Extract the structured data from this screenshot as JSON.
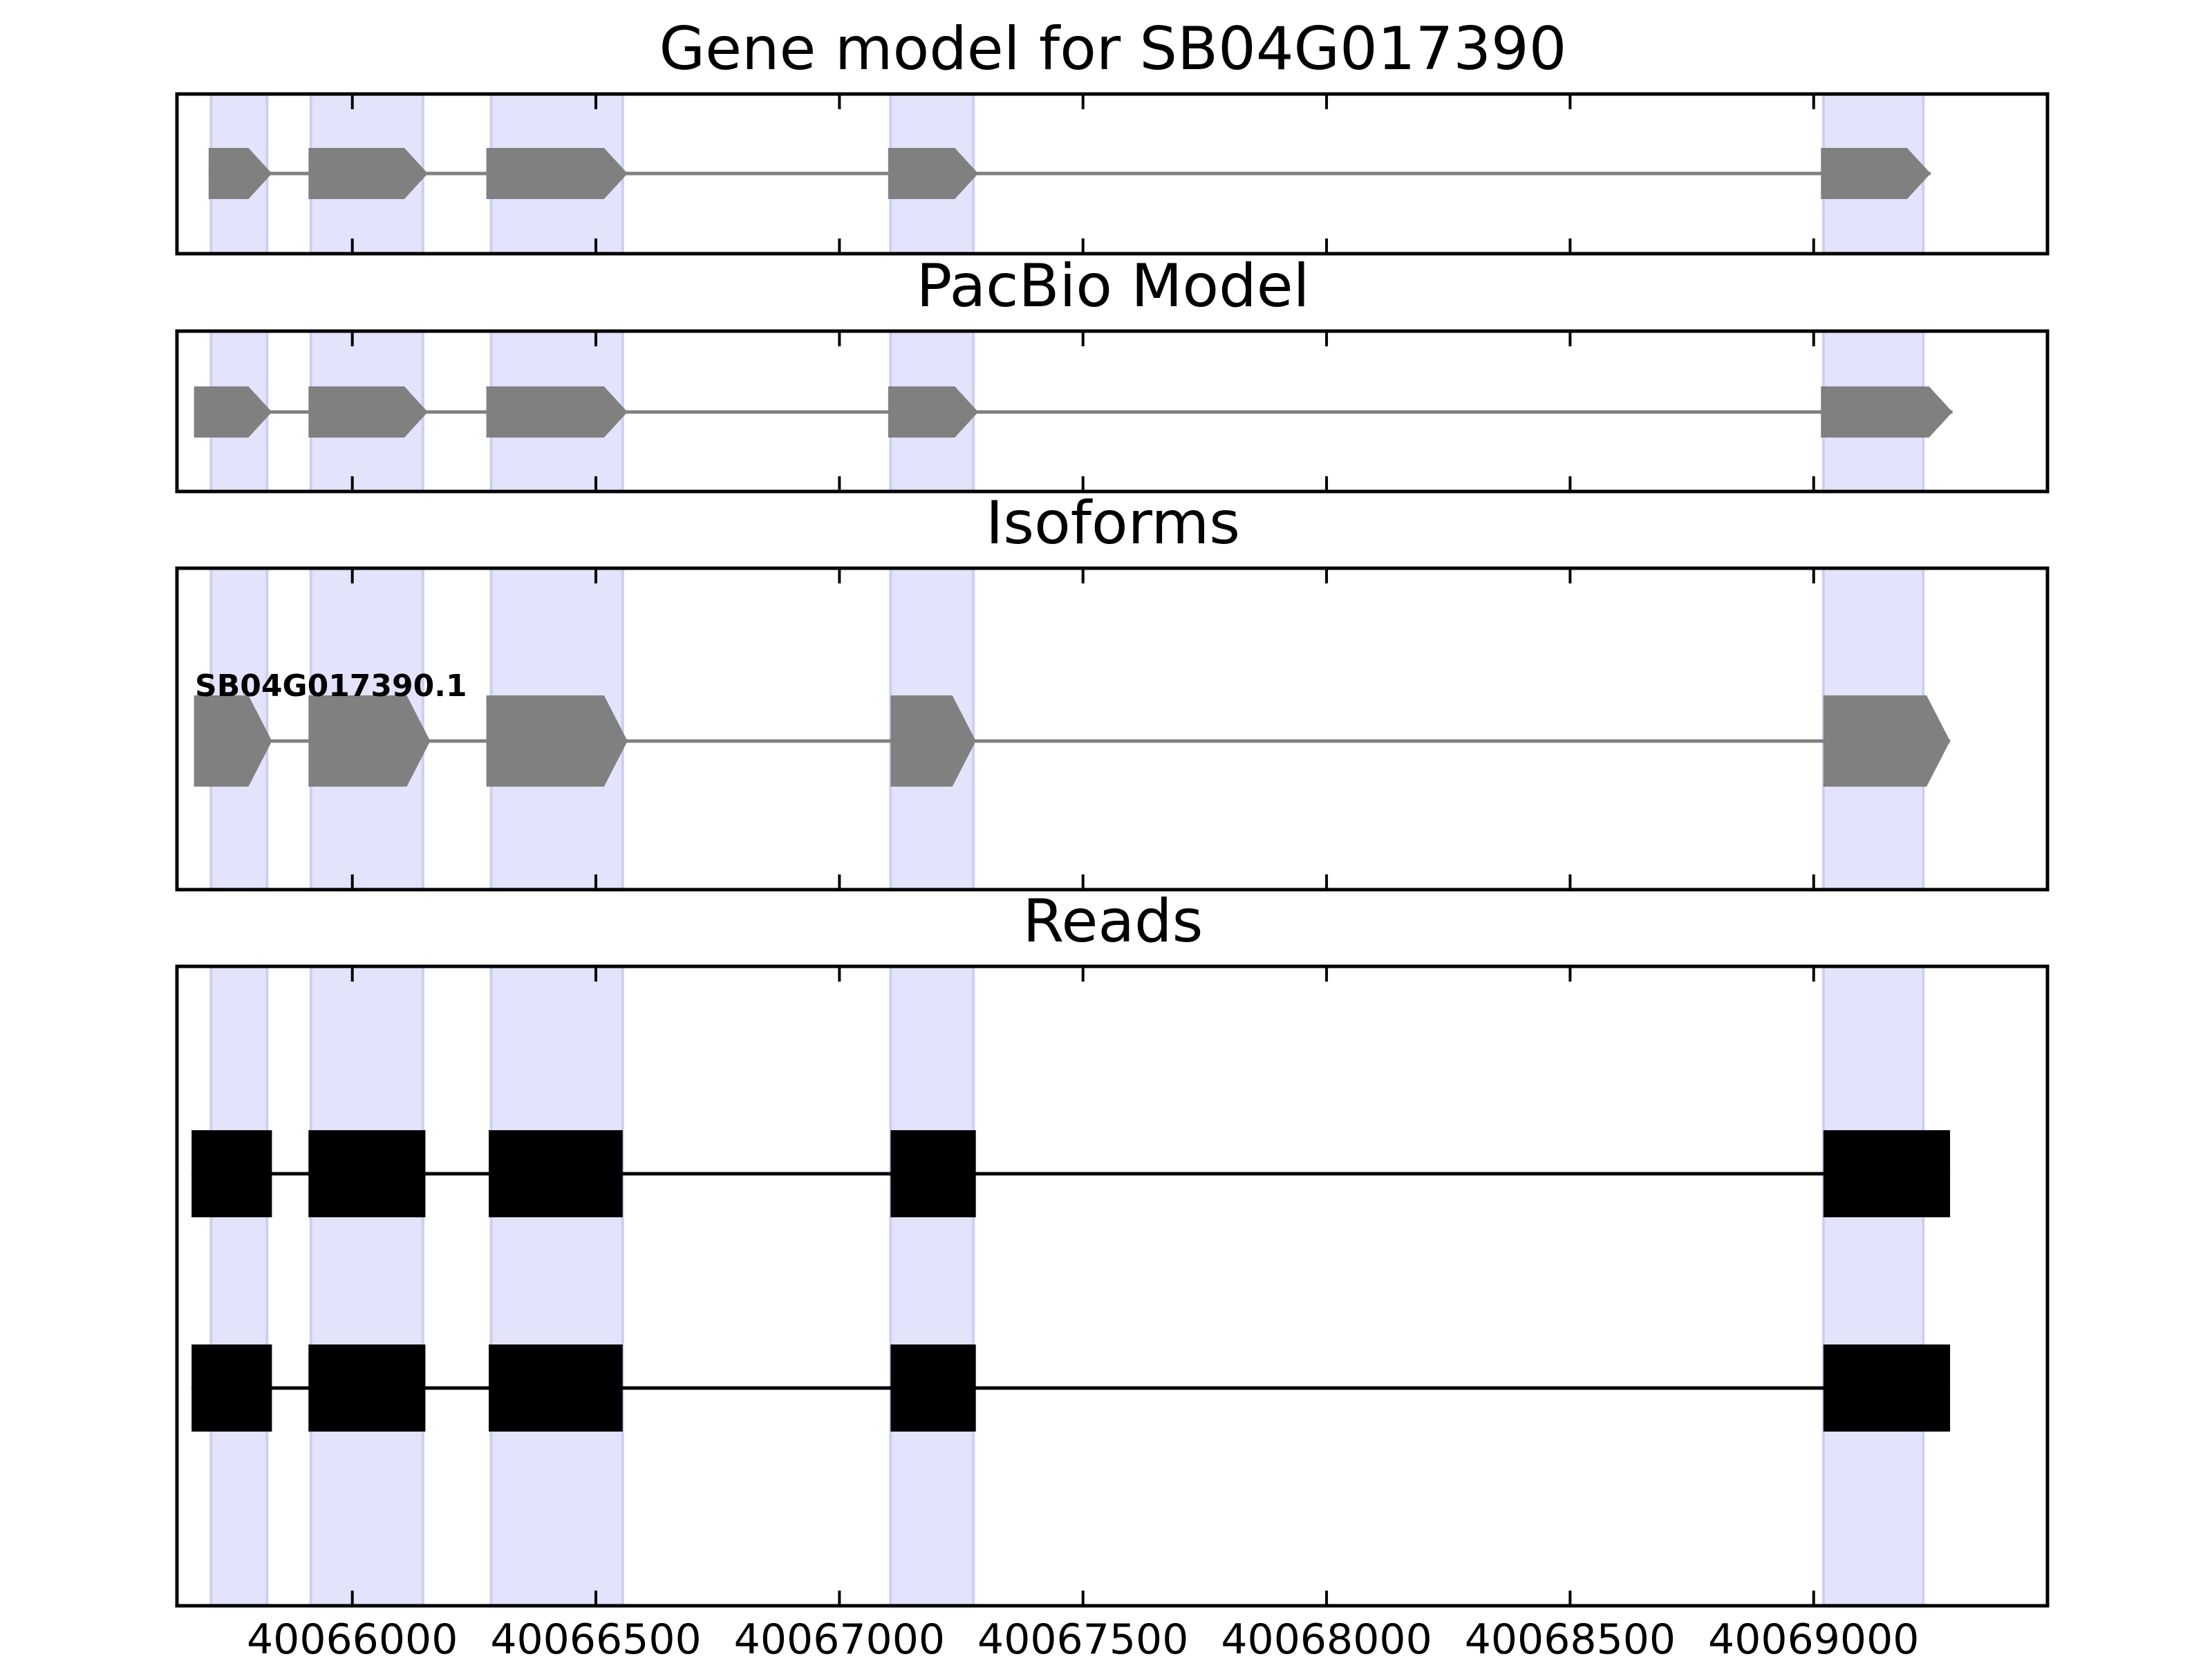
{
  "chart_data": {
    "type": "gene-structure",
    "x_range": [
      40065640,
      40069480
    ],
    "x_ticks": [
      40066000,
      40066500,
      40067000,
      40067500,
      40068000,
      40068500,
      40069000
    ],
    "x_tick_labels": [
      "40066000",
      "40066500",
      "40067000",
      "40067500",
      "40068000",
      "40068500",
      "40069000"
    ],
    "shaded_regions": [
      [
        40065710,
        40065825
      ],
      [
        40065915,
        40066145
      ],
      [
        40066285,
        40066555
      ],
      [
        40067105,
        40067275
      ],
      [
        40069020,
        40069225
      ]
    ],
    "colors": {
      "shade": "#e3e3fc",
      "shade_edge": "#cccfef",
      "model": "#808080",
      "reads": "#000000"
    },
    "panels": [
      {
        "title": "Gene model for SB04G017390",
        "exons": [
          [
            40065705,
            40065835
          ],
          [
            40065910,
            40066155
          ],
          [
            40066275,
            40066565
          ],
          [
            40067100,
            40067285
          ],
          [
            40069015,
            40069240
          ]
        ]
      },
      {
        "title": "PacBio Model",
        "exons": [
          [
            40065675,
            40065835
          ],
          [
            40065910,
            40066155
          ],
          [
            40066275,
            40066565
          ],
          [
            40067100,
            40067285
          ],
          [
            40069015,
            40069285
          ]
        ]
      },
      {
        "title": "Isoforms",
        "isoform_label": "SB04G017390.1",
        "exons": [
          [
            40065675,
            40065835
          ],
          [
            40065910,
            40066160
          ],
          [
            40066275,
            40066565
          ],
          [
            40067105,
            40067280
          ],
          [
            40069020,
            40069280
          ]
        ]
      },
      {
        "title": "Reads",
        "reads": [
          [
            [
              40065670,
              40065835
            ],
            [
              40065910,
              40066150
            ],
            [
              40066280,
              40066555
            ],
            [
              40067105,
              40067280
            ],
            [
              40069020,
              40069280
            ]
          ],
          [
            [
              40065670,
              40065835
            ],
            [
              40065910,
              40066150
            ],
            [
              40066280,
              40066555
            ],
            [
              40067105,
              40067280
            ],
            [
              40069020,
              40069280
            ]
          ]
        ]
      }
    ]
  }
}
